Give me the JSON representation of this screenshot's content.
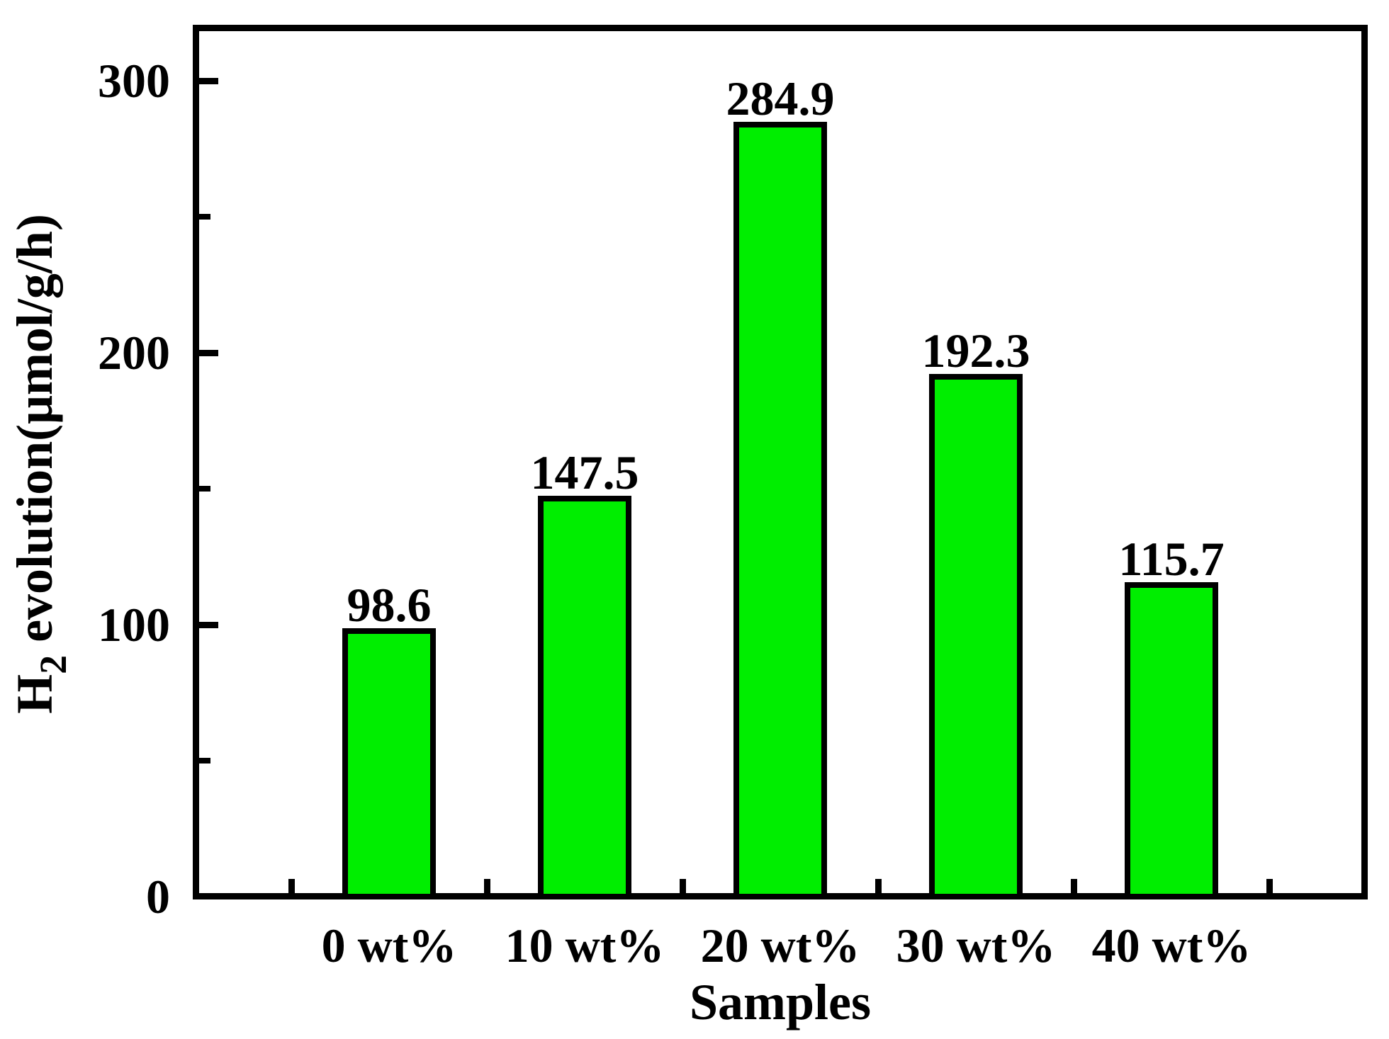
{
  "figure": {
    "background_color": "#ffffff",
    "text_color": "#000000"
  },
  "chart_data": {
    "type": "bar",
    "title": "",
    "xlabel": "Samples",
    "ylabel": "H2 evolution(μmol/g/h)",
    "ylabel_parts": {
      "base": "H",
      "subscript": "2",
      "rest": " evolution(μmol/g/h)"
    },
    "categories": [
      "0 wt%",
      "10 wt%",
      "20 wt%",
      "30 wt%",
      "40 wt%"
    ],
    "values": [
      98.6,
      147.5,
      284.9,
      192.3,
      115.7
    ],
    "value_labels": [
      "98.6",
      "147.5",
      "284.9",
      "192.3",
      "115.7"
    ],
    "y_ticks_major": [
      0,
      100,
      200,
      300
    ],
    "y_tick_labels": [
      "0",
      "100",
      "200",
      "300"
    ],
    "y_ticks_minor": [
      50,
      150,
      250
    ],
    "ylim": [
      0,
      318
    ],
    "grid": false,
    "legend": "none",
    "bar_color": "#00ee00",
    "bar_border_color": "#000000",
    "axis_color": "#000000"
  }
}
